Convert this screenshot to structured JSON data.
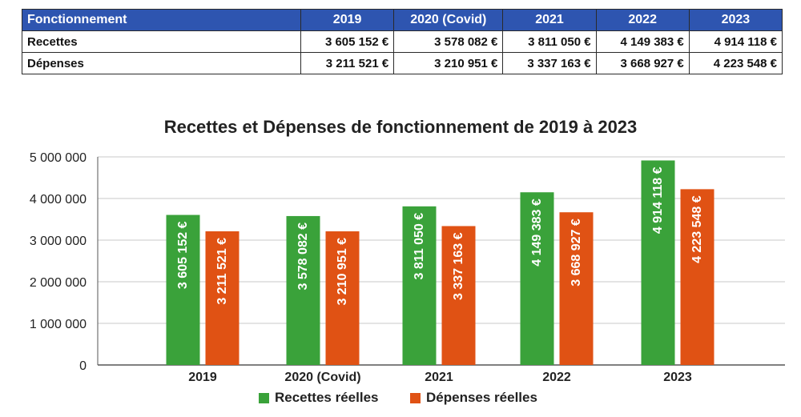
{
  "table": {
    "headers": [
      "Fonctionnement",
      "2019",
      "2020 (Covid)",
      "2021",
      "2022",
      "2023"
    ],
    "rows": [
      {
        "label": "Recettes",
        "cells": [
          "3 605 152 €",
          "3 578 082 €",
          "3 811 050 €",
          "4 149 383 €",
          "4 914 118 €"
        ]
      },
      {
        "label": "Dépenses",
        "cells": [
          "3 211 521 €",
          "3 210 951 €",
          "3 337 163 €",
          "3 668 927 €",
          "4 223 548 €"
        ]
      }
    ]
  },
  "chart_data": {
    "type": "bar",
    "title": "Recettes et Dépenses de fonctionnement de 2019 à 2023",
    "categories": [
      "2019",
      "2020 (Covid)",
      "2021",
      "2022",
      "2023"
    ],
    "series": [
      {
        "name": "Recettes réelles",
        "color": "#3aa23a",
        "values": [
          3605152,
          3578082,
          3811050,
          4149383,
          4914118
        ],
        "labels": [
          "3 605 152 €",
          "3 578 082 €",
          "3 811 050 €",
          "4 149 383 €",
          "4 914 118 €"
        ]
      },
      {
        "name": "Dépenses réelles",
        "color": "#e05214",
        "values": [
          3211521,
          3210951,
          3337163,
          3668927,
          4223548
        ],
        "labels": [
          "3 211 521 €",
          "3 210 951 €",
          "3 337 163 €",
          "3 668 927 €",
          "4 223 548 €"
        ]
      }
    ],
    "ylim": [
      0,
      5000000
    ],
    "yticks": [
      0,
      1000000,
      2000000,
      3000000,
      4000000,
      5000000
    ],
    "ytick_labels": [
      "0",
      "1 000 000",
      "2 000 000",
      "3 000 000",
      "4 000 000",
      "5 000 000"
    ],
    "xlabel": "",
    "ylabel": "",
    "grid": true,
    "legend": "bottom"
  }
}
